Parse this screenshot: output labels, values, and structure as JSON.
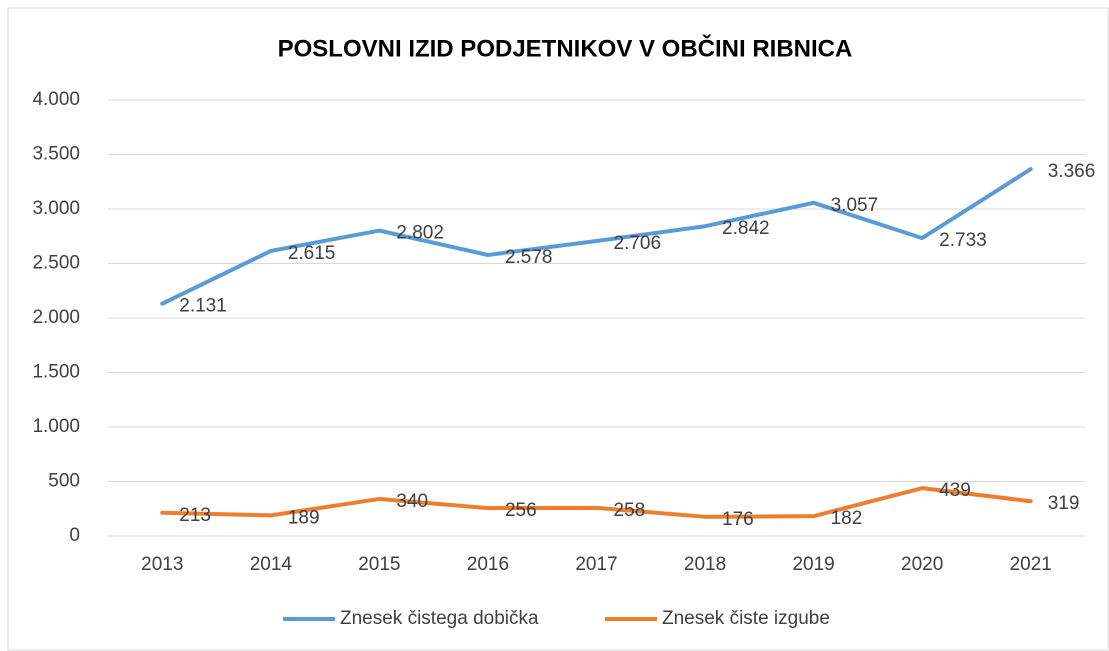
{
  "chart_data": {
    "type": "line",
    "title": "POSLOVNI IZID PODJETNIKOV V OBČINI RIBNICA",
    "categories": [
      "2013",
      "2014",
      "2015",
      "2016",
      "2017",
      "2018",
      "2019",
      "2020",
      "2021"
    ],
    "series": [
      {
        "name": "Znesek čistega dobička",
        "color": "#5b9bd5",
        "values": [
          2131,
          2615,
          2802,
          2578,
          2706,
          2842,
          3057,
          2733,
          3366
        ],
        "value_labels": [
          "2.131",
          "2.615",
          "2.802",
          "2.578",
          "2.706",
          "2.842",
          "3.057",
          "2.733",
          "3.366"
        ]
      },
      {
        "name": "Znesek čiste izgube",
        "color": "#ed7d31",
        "values": [
          213,
          189,
          340,
          256,
          258,
          176,
          182,
          439,
          319
        ]
      }
    ],
    "ylim": [
      0,
      4000
    ],
    "yticks": [
      0,
      500,
      {
        "value": 1000,
        "label": "1.000"
      },
      {
        "value": 1500,
        "label": "1.500"
      },
      {
        "value": 2000,
        "label": "2.000"
      },
      {
        "value": 2500,
        "label": "2.500"
      },
      {
        "value": 3000,
        "label": "3.000"
      },
      {
        "value": 3500,
        "label": "3.500"
      },
      {
        "value": 4000,
        "label": "4.000"
      }
    ],
    "grid": true,
    "legend": "bottom"
  }
}
